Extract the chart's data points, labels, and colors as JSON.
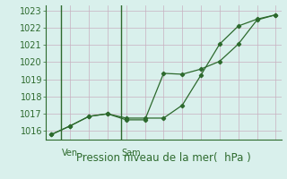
{
  "line1_x": [
    0,
    1,
    2,
    3,
    4,
    5,
    6,
    7,
    8,
    9,
    10,
    11,
    12
  ],
  "line1_y": [
    1015.8,
    1016.3,
    1016.85,
    1017.0,
    1016.75,
    1016.75,
    1016.75,
    1017.5,
    1019.25,
    1021.05,
    1022.1,
    1022.5,
    1022.75
  ],
  "line2_x": [
    0,
    1,
    2,
    3,
    4,
    5,
    6,
    7,
    8,
    9,
    10,
    11,
    12
  ],
  "line2_y": [
    1015.8,
    1016.3,
    1016.85,
    1017.0,
    1016.65,
    1016.65,
    1019.35,
    1019.3,
    1019.6,
    1020.05,
    1021.05,
    1022.45,
    1022.75
  ],
  "ylim": [
    1015.5,
    1023.3
  ],
  "yticks": [
    1016,
    1017,
    1018,
    1019,
    1020,
    1021,
    1022,
    1023
  ],
  "xlim": [
    -0.3,
    12.3
  ],
  "ven_line_x": 0.5,
  "sam_line_x": 3.7,
  "ven_label": "Ven",
  "sam_label": "Sam",
  "xlabel": "Pression niveau de la mer(  hPa )",
  "line_color": "#2d6a2d",
  "bg_color": "#d9f0ec",
  "grid_color": "#c8b0c0",
  "axis_color": "#2d6a2d",
  "tick_color": "#2d6a2d",
  "label_fontsize": 8.5,
  "tick_fontsize": 7,
  "day_fontsize": 7,
  "n_xgrid": 13,
  "n_xminor": 2
}
